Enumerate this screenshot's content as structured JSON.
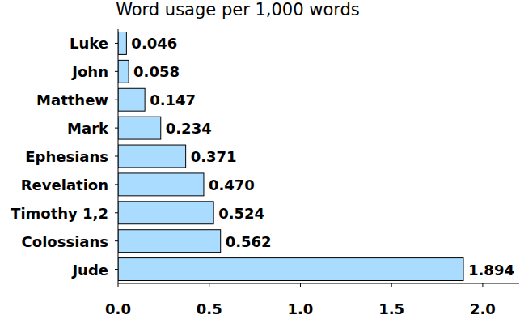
{
  "chart_data": {
    "type": "bar",
    "title": "Word usage per 1,000 words",
    "orientation": "horizontal",
    "categories": [
      "Luke",
      "John",
      "Matthew",
      "Mark",
      "Ephesians",
      "Revelation",
      "Timothy 1,2",
      "Colossians",
      "Jude"
    ],
    "values": [
      0.046,
      0.058,
      0.147,
      0.234,
      0.371,
      0.47,
      0.524,
      0.562,
      1.894
    ],
    "value_labels": [
      "0.046",
      "0.058",
      "0.147",
      "0.234",
      "0.371",
      "0.470",
      "0.524",
      "0.562",
      "1.894"
    ],
    "data_labels": true,
    "color": "#aadcff",
    "grid": false,
    "xlim": [
      0,
      2.2
    ],
    "xticks": [
      {
        "value": 0,
        "label": "0.0"
      },
      0.5,
      {
        "value": 1,
        "label": "1.0"
      },
      1.5,
      {
        "value": 2,
        "label": "2.0"
      }
    ]
  }
}
